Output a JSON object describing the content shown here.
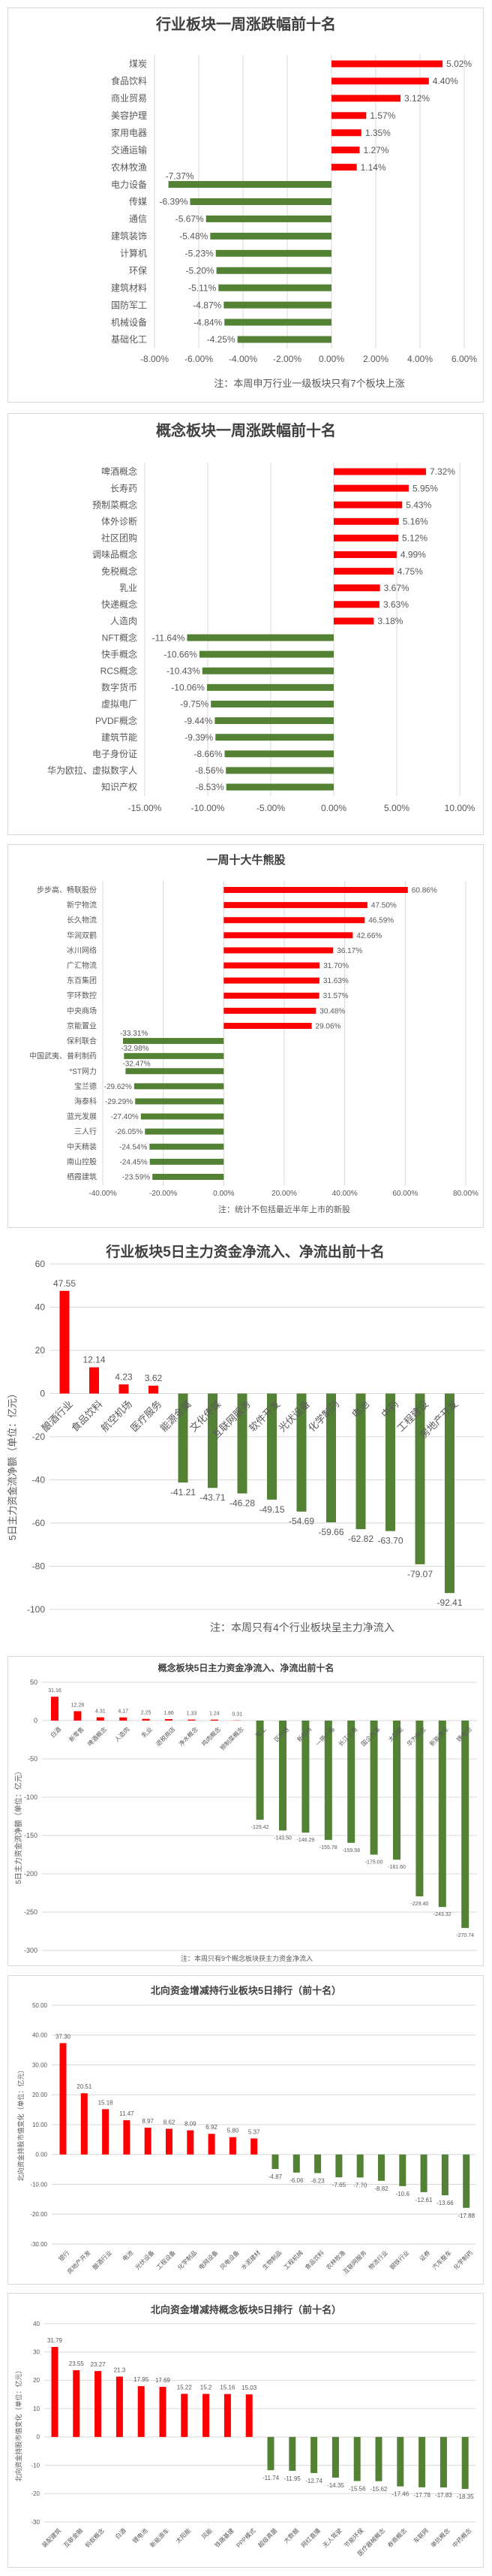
{
  "colors": {
    "positive": "#FF0000",
    "negative": "#548235",
    "grid": "#D9D9D9",
    "text": "#595959"
  },
  "chart_data": [
    {
      "type": "bar",
      "orientation": "horizontal",
      "title": "行业板块一周涨跌幅前十名",
      "categories": [
        "煤炭",
        "食品饮料",
        "商业贸易",
        "美容护理",
        "家用电器",
        "交通运输",
        "农林牧渔",
        "电力设备",
        "传媒",
        "通信",
        "建筑装饰",
        "计算机",
        "环保",
        "建筑材料",
        "国防军工",
        "机械设备",
        "基础化工"
      ],
      "values": [
        5.02,
        4.4,
        3.12,
        1.57,
        1.35,
        1.27,
        1.14,
        -7.37,
        -6.39,
        -5.67,
        -5.48,
        -5.23,
        -5.2,
        -5.11,
        -4.87,
        -4.84,
        -4.25
      ],
      "unit": "%",
      "xlim": [
        -8,
        6
      ],
      "xtick_step": 2,
      "grid": true,
      "note": "注：本周申万行业一级板块只有7个板块上涨"
    },
    {
      "type": "bar",
      "orientation": "horizontal",
      "title": "概念板块一周涨跌幅前十名",
      "categories": [
        "啤酒概念",
        "长寿药",
        "预制菜概念",
        "体外诊断",
        "社区团购",
        "调味品概念",
        "免税概念",
        "乳业",
        "快递概念",
        "人造肉",
        "NFT概念",
        "快手概念",
        "RCS概念",
        "数字货币",
        "虚拟电厂",
        "PVDF概念",
        "建筑节能",
        "电子身份证",
        "华为欧拉、虚拟数字人",
        "知识产权"
      ],
      "values": [
        7.32,
        5.95,
        5.43,
        5.16,
        5.12,
        4.99,
        4.75,
        3.67,
        3.63,
        3.18,
        -11.64,
        -10.66,
        -10.43,
        -10.06,
        -9.75,
        -9.44,
        -9.39,
        -8.66,
        -8.56,
        -8.53
      ],
      "unit": "%",
      "xlim": [
        -15,
        10
      ],
      "xtick_step": 5,
      "grid": true,
      "note": ""
    },
    {
      "type": "bar",
      "orientation": "horizontal",
      "title": "一周十大牛熊股",
      "categories": [
        "步步高、畅联股份",
        "新宁物流",
        "长久物流",
        "华润双鹤",
        "冰川网络",
        "广汇物流",
        "东百集团",
        "宇环数控",
        "中央商场",
        "京能置业",
        "保利联合",
        "中国武夷、普利制药",
        "*ST网力",
        "宝兰德",
        "海泰科",
        "蓝光发展",
        "三人行",
        "中天精装",
        "南山控股",
        "栖霞建筑"
      ],
      "values": [
        60.86,
        47.5,
        46.59,
        42.66,
        36.17,
        31.7,
        31.63,
        31.57,
        30.48,
        29.06,
        -33.31,
        -32.98,
        -32.47,
        -29.62,
        -29.29,
        -27.4,
        -26.05,
        -24.54,
        -24.45,
        -23.59
      ],
      "unit": "%",
      "xlim": [
        -40,
        80
      ],
      "xtick_step": 20,
      "grid": true,
      "note": "注：统计不包括最近半年上市的新股"
    },
    {
      "type": "bar",
      "orientation": "vertical",
      "title": "行业板块5日主力资金净流入、净流出前十名",
      "ylabel": "5日主力资金流净额（单位：亿元）",
      "categories": [
        "酿酒行业",
        "食品饮料",
        "航空机场",
        "医疗服务",
        "能源金属",
        "文化传媒",
        "互联网服务",
        "软件开发",
        "光伏设备",
        "化学制药",
        "电池",
        "中药",
        "工程建设",
        "房地产开发"
      ],
      "values": [
        47.55,
        12.14,
        4.23,
        3.62,
        -41.21,
        -43.71,
        -46.28,
        -49.15,
        -54.69,
        -59.66,
        -62.82,
        -63.7,
        -79.07,
        -92.41
      ],
      "data_labels": [
        "47.55",
        "12.14",
        "4.23",
        "3.62",
        "-41.21",
        "-43.71",
        "-46.28",
        "-49.15",
        "-54.69",
        "-59.66",
        "-62.82",
        "-63.70",
        "-79.07",
        "-92.41"
      ],
      "ylim": [
        -100,
        60
      ],
      "ytick_step": 20,
      "ytick_decimals": 0,
      "grid": true,
      "note": "注：本周只有4个行业板块呈主力净流入"
    },
    {
      "type": "bar",
      "orientation": "vertical",
      "title": "概念板块5日主力资金净流入、净流出前十名",
      "ylabel": "5日主力资金流净额（单位：亿元）",
      "categories": [
        "白酒",
        "新零售",
        "啤酒概念",
        "人造肉",
        "乳业",
        "退税商店",
        "净水概念",
        "鸡肉概念",
        "预制菜概念",
        "军工",
        "区块链",
        "新材料",
        "一带一路",
        "长江三角",
        "国企改革",
        "太阳能",
        "华为概念",
        "新能源车",
        "锂电池"
      ],
      "values": [
        31.16,
        12.28,
        4.31,
        4.17,
        2.25,
        1.86,
        1.33,
        1.24,
        0.31,
        -129.42,
        -143.5,
        -146.29,
        -155.78,
        -159.58,
        -175.0,
        -181.6,
        -229.4,
        -243.32,
        -270.74
      ],
      "data_labels": [
        "31.16",
        "12.28",
        "4.31",
        "4.17",
        "2.25",
        "1.86",
        "1.33",
        "1.24",
        "0.31",
        "-129.42",
        "-143.50",
        "-146.29",
        "-155.78",
        "-159.58",
        "-175.00",
        "-181.60",
        "-229.40",
        "-243.32",
        "-270.74"
      ],
      "ylim": [
        -300,
        50
      ],
      "ytick_step": 50,
      "ytick_decimals": 0,
      "grid": true,
      "note": "注：本周只有9个概念板块获主力资金净流入"
    },
    {
      "type": "bar",
      "orientation": "vertical",
      "title": "北向资金增减持行业板块5日排行（前十名）",
      "ylabel": "北向资金持股市值变化（单位：亿元）",
      "categories": [
        "银行",
        "房地产开发",
        "酿酒行业",
        "电池",
        "光伏设备",
        "工程设备",
        "化学制品",
        "电网设备",
        "风电设备",
        "水泥建材",
        "生物制品",
        "工程机械",
        "食品饮料",
        "农林牧渔",
        "互联网服务",
        "物流行业",
        "钢铁行业",
        "证券",
        "汽车整车",
        "化学制药"
      ],
      "values": [
        37.3,
        20.51,
        15.18,
        11.47,
        8.97,
        8.62,
        8.09,
        6.92,
        5.8,
        5.37,
        -4.87,
        -6.06,
        -6.23,
        -7.65,
        -7.7,
        -8.82,
        -10.6,
        -12.61,
        -13.66,
        -17.88
      ],
      "data_labels": [
        "37.30",
        "20.51",
        "15.18",
        "11.47",
        "8.97",
        "8.62",
        "8.09",
        "6.92",
        "5.80",
        "5.37",
        "-4.87",
        "-6.06",
        "-6.23",
        "-7.65",
        "-7.70",
        "-8.82",
        "-10.6",
        "-12.61",
        "-13.66",
        "-17.88"
      ],
      "ylim": [
        -30,
        50
      ],
      "ytick_step": 10,
      "ytick_decimals": 2,
      "grid": true,
      "note": ""
    },
    {
      "type": "bar",
      "orientation": "vertical",
      "title": "北向资金增减持概念板块5日排行（前十名）",
      "ylabel": "北向资金持股市值变化（单位：亿元）",
      "categories": [
        "装配建筑",
        "互联金融",
        "蚂蚁概念",
        "白酒",
        "锂电池",
        "新能源车",
        "太阳能",
        "风能",
        "铁路基建",
        "PPP模式",
        "超级真菌",
        "大数据",
        "网红直播",
        "无人驾驶",
        "节能环保",
        "医疗器械概念",
        "券商概念",
        "车联网",
        "单抗概念",
        "中药概念"
      ],
      "values": [
        31.79,
        23.55,
        23.27,
        21.3,
        17.95,
        17.69,
        15.22,
        15.2,
        15.16,
        15.03,
        -11.74,
        -11.95,
        -12.74,
        -14.35,
        -15.56,
        -15.62,
        -17.46,
        -17.78,
        -17.83,
        -18.35
      ],
      "data_labels": [
        "31.79",
        "23.55",
        "23.27",
        "21.3",
        "17.95",
        "17.69",
        "15.22",
        "15.2",
        "15.16",
        "15.03",
        "-11.74",
        "-11.95",
        "-12.74",
        "-14.35",
        "-15.56",
        "-15.62",
        "-17.46",
        "-17.78",
        "-17.83",
        "-18.35"
      ],
      "ylim": [
        -30,
        40
      ],
      "ytick_step": 10,
      "ytick_decimals": 0,
      "grid": true,
      "note": ""
    }
  ]
}
